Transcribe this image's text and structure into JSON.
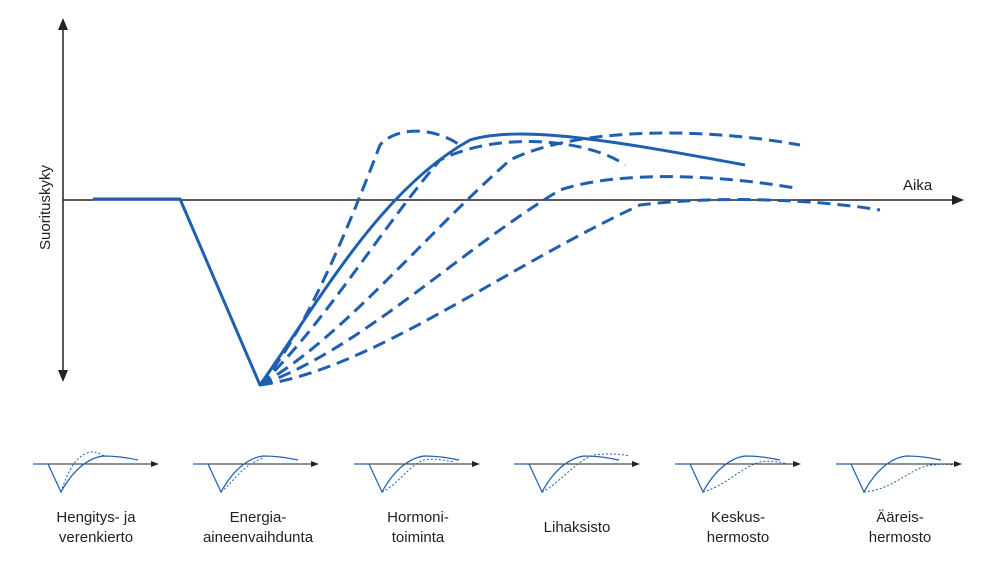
{
  "diagram": {
    "y_axis_label": "Suorituskyky",
    "x_axis_label": "Aika",
    "line_color": "#1f5fb0",
    "axis_color": "#222222",
    "systems": [
      {
        "id": "hengitys",
        "lines": [
          "Hengitys- ja",
          "verenkierto"
        ]
      },
      {
        "id": "energia",
        "lines": [
          "Energia-",
          "aineenvaihdunta"
        ]
      },
      {
        "id": "hormoni",
        "lines": [
          "Hormoni-",
          "toiminta"
        ]
      },
      {
        "id": "lihaksisto",
        "lines": [
          "Lihaksisto",
          ""
        ]
      },
      {
        "id": "keskus",
        "lines": [
          "Keskus-",
          "hermosto"
        ]
      },
      {
        "id": "aareis",
        "lines": [
          "Ääreis-",
          "hermosto"
        ]
      }
    ]
  }
}
